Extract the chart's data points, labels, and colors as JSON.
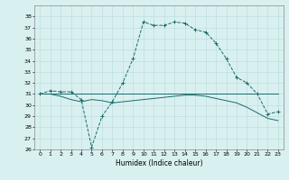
{
  "title": "",
  "xlabel": "Humidex (Indice chaleur)",
  "bg_color": "#d9f0f0",
  "grid_color": "#b8dada",
  "line_color": "#1a6b6b",
  "xlim": [
    -0.5,
    23.5
  ],
  "ylim": [
    26,
    39
  ],
  "yticks": [
    26,
    27,
    28,
    29,
    30,
    31,
    32,
    33,
    34,
    35,
    36,
    37,
    38
  ],
  "xticks": [
    0,
    1,
    2,
    3,
    4,
    5,
    6,
    7,
    8,
    9,
    10,
    11,
    12,
    13,
    14,
    15,
    16,
    17,
    18,
    19,
    20,
    21,
    22,
    23
  ],
  "series1": [
    31.0,
    31.3,
    31.2,
    31.2,
    30.5,
    26.2,
    29.0,
    30.3,
    32.0,
    34.2,
    37.5,
    37.2,
    37.2,
    37.5,
    37.4,
    36.8,
    36.6,
    35.6,
    34.2,
    32.5,
    32.0,
    31.0,
    29.2,
    29.4
  ],
  "series2": [
    31.0,
    31.0,
    31.0,
    31.0,
    31.0,
    31.0,
    31.0,
    31.0,
    31.0,
    31.0,
    31.0,
    31.0,
    31.0,
    31.0,
    31.0,
    31.0,
    31.0,
    31.0,
    31.0,
    31.0,
    31.0,
    31.0,
    31.0,
    31.0
  ],
  "series3": [
    31.0,
    31.0,
    30.8,
    30.5,
    30.3,
    30.5,
    30.4,
    30.2,
    30.3,
    30.4,
    30.5,
    30.6,
    30.7,
    30.8,
    30.9,
    30.9,
    30.8,
    30.6,
    30.4,
    30.2,
    29.8,
    29.3,
    28.8,
    28.6
  ]
}
